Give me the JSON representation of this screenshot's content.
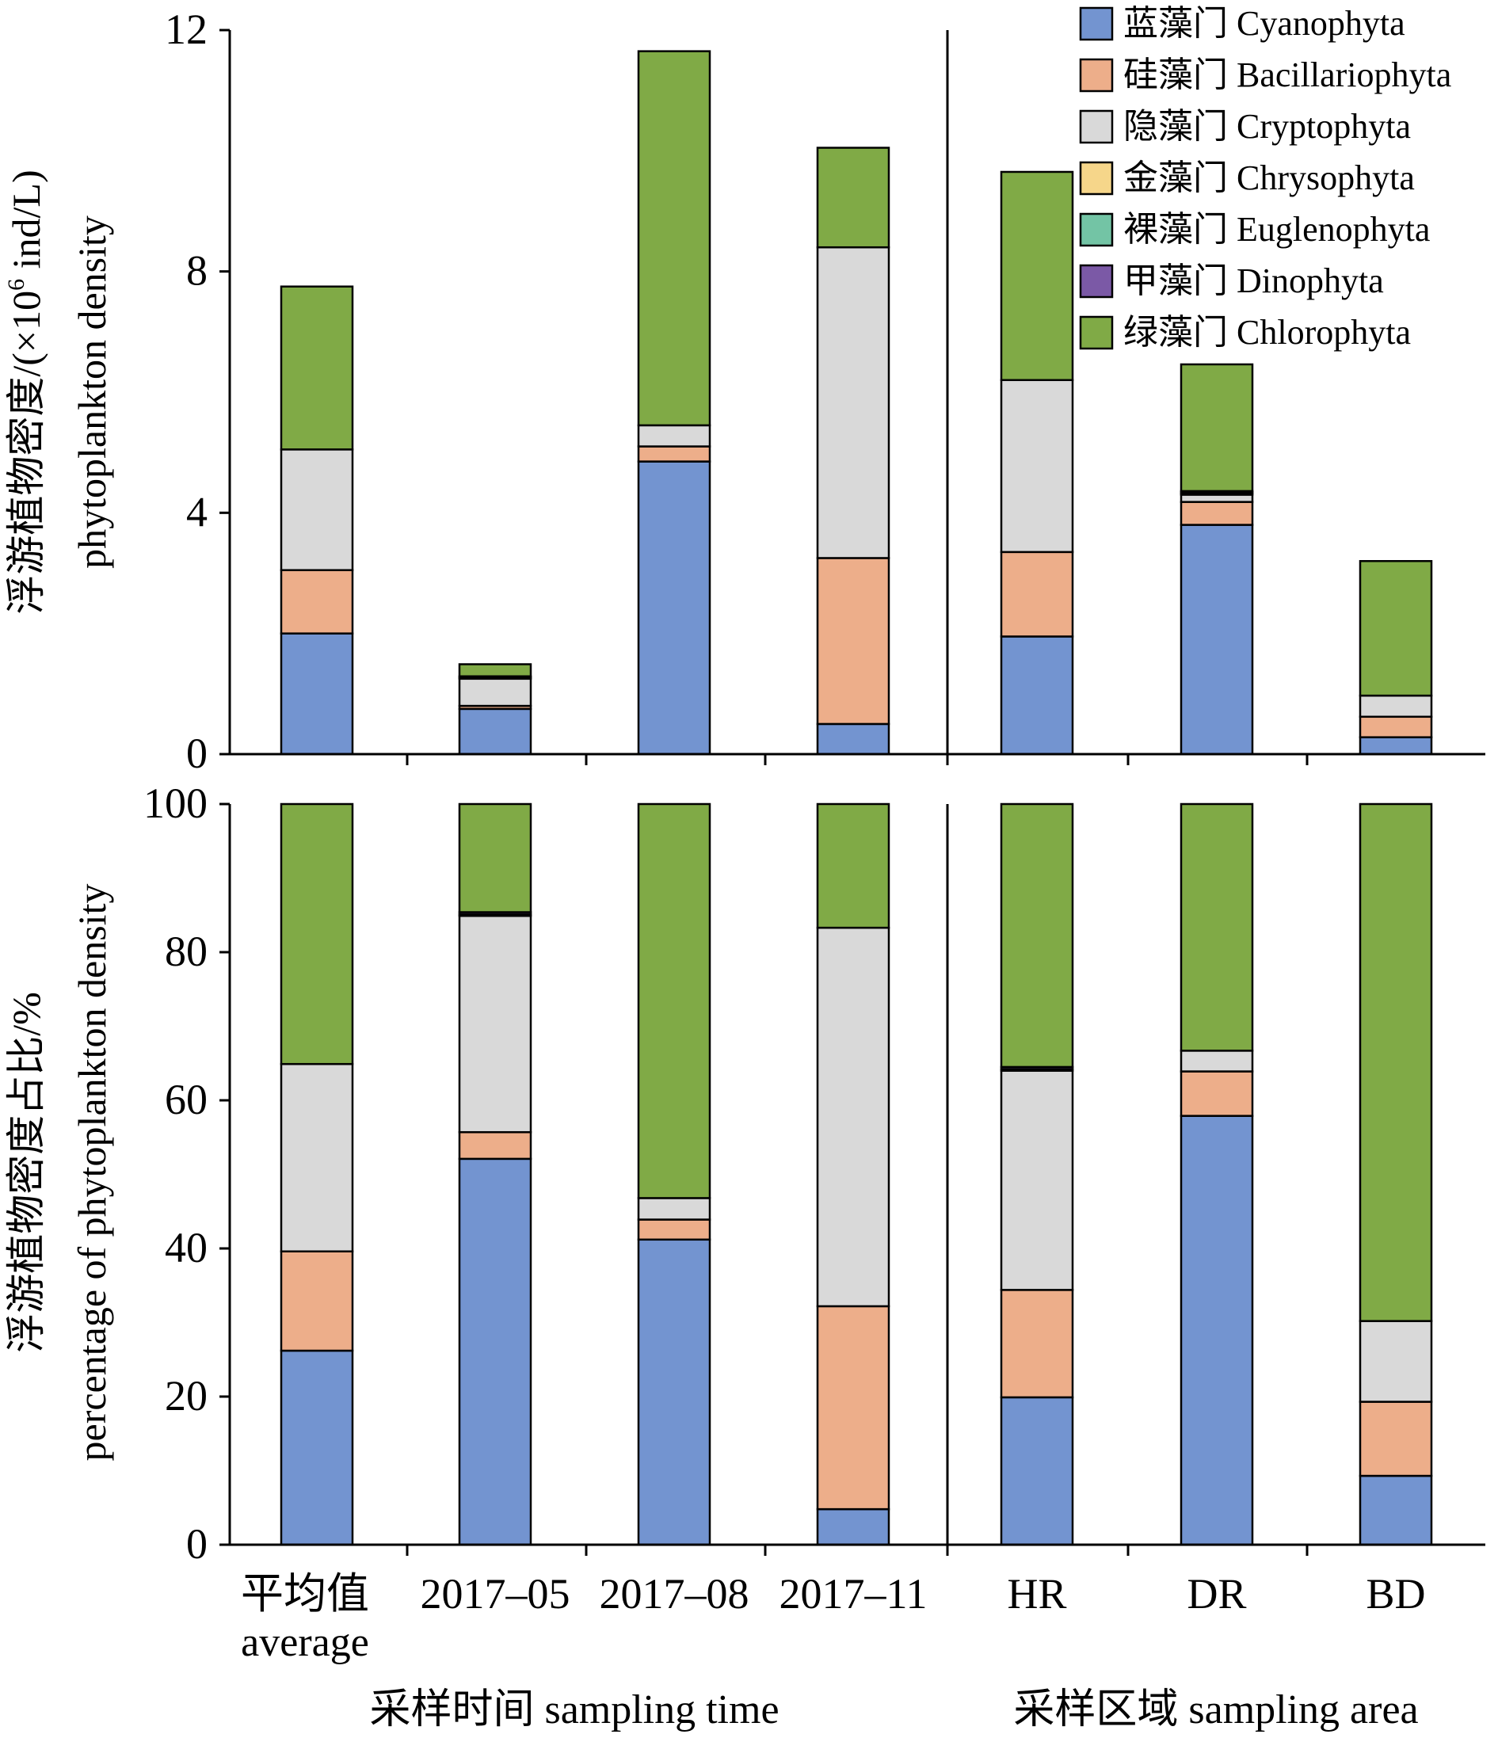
{
  "chart_data": [
    {
      "type": "bar",
      "stacked": true,
      "categories": [
        "平均值",
        "2017–05",
        "2017–08",
        "2017–11",
        "HR",
        "DR",
        "BD"
      ],
      "y_label_cn": "浮游植物密度/(×10",
      "y_label_cn_sup": "6",
      "y_label_cn_end": " ind/L)",
      "y_label_en": "phytoplankton density",
      "ylim": [
        0,
        12
      ],
      "yticks": [
        "0",
        "4",
        "8",
        "12"
      ],
      "grid": false,
      "legend": "top-right",
      "series": [
        {
          "name": "蓝藻门 Cyanophyta",
          "color": "#7394d0",
          "values": [
            2.0,
            0.75,
            4.85,
            0.5,
            1.95,
            3.8,
            0.28
          ]
        },
        {
          "name": "硅藻门 Bacillariophyta",
          "color": "#edae8a",
          "values": [
            1.05,
            0.05,
            0.25,
            2.75,
            1.4,
            0.38,
            0.34
          ]
        },
        {
          "name": "隐藻门 Cryptophyta",
          "color": "#d9d9d9",
          "values": [
            2.0,
            0.45,
            0.35,
            5.15,
            2.85,
            0.12,
            0.35
          ]
        },
        {
          "name": "金藻门 Chrysophyta",
          "color": "#f6d68a",
          "values": [
            0.0,
            0.0,
            0.0,
            0.0,
            0.0,
            0.02,
            0.0
          ]
        },
        {
          "name": "裸藻门 Euglenophyta",
          "color": "#73c4a5",
          "values": [
            0.0,
            0.02,
            0.0,
            0.0,
            0.0,
            0.02,
            0.0
          ]
        },
        {
          "name": "甲藻门 Dinophyta",
          "color": "#7b59a6",
          "values": [
            0.0,
            0.02,
            0.0,
            0.0,
            0.0,
            0.02,
            0.0
          ]
        },
        {
          "name": "绿藻门 Chlorophyta",
          "color": "#80aa46",
          "values": [
            2.7,
            0.2,
            6.2,
            1.65,
            3.45,
            2.1,
            2.23
          ]
        }
      ]
    },
    {
      "type": "bar",
      "stacked": true,
      "categories": [
        "平均值",
        "2017–05",
        "2017–08",
        "2017–11",
        "HR",
        "DR",
        "BD"
      ],
      "y_label_cn": "浮游植物密度占比/%",
      "y_label_en": "percentage of phytoplankton density",
      "ylim": [
        0,
        100
      ],
      "yticks": [
        "0",
        "20",
        "40",
        "60",
        "80",
        "100"
      ],
      "grid": false,
      "series": [
        {
          "name": "蓝藻门 Cyanophyta",
          "color": "#7394d0",
          "values": [
            26.2,
            52.1,
            41.2,
            4.8,
            19.9,
            57.9,
            9.3
          ]
        },
        {
          "name": "硅藻门 Bacillariophyta",
          "color": "#edae8a",
          "values": [
            13.4,
            3.6,
            2.7,
            27.4,
            14.5,
            6.0,
            10.0
          ]
        },
        {
          "name": "隐藻门 Cryptophyta",
          "color": "#d9d9d9",
          "values": [
            25.3,
            29.2,
            2.9,
            51.1,
            29.6,
            2.8,
            10.9
          ]
        },
        {
          "name": "金藻门 Chrysophyta",
          "color": "#f6d68a",
          "values": [
            0.0,
            0.0,
            0.0,
            0.0,
            0.0,
            0.0,
            0.0
          ]
        },
        {
          "name": "裸藻门 Euglenophyta",
          "color": "#73c4a5",
          "values": [
            0.0,
            0.2,
            0.0,
            0.0,
            0.2,
            0.0,
            0.0
          ]
        },
        {
          "name": "甲藻门 Dinophyta",
          "color": "#7b59a6",
          "values": [
            0.0,
            0.3,
            0.0,
            0.0,
            0.3,
            0.0,
            0.0
          ]
        },
        {
          "name": "绿藻门 Chlorophyta",
          "color": "#80aa46",
          "values": [
            35.1,
            14.6,
            53.2,
            16.7,
            35.5,
            33.3,
            69.8
          ]
        }
      ]
    }
  ],
  "x_axis": {
    "categories_cn": [
      "平均值",
      "2017–05",
      "2017–08",
      "2017–11",
      "HR",
      "DR",
      "BD"
    ],
    "first_sub": "average",
    "group_time": "采样时间 sampling time",
    "group_area": "采样区域 sampling area"
  }
}
